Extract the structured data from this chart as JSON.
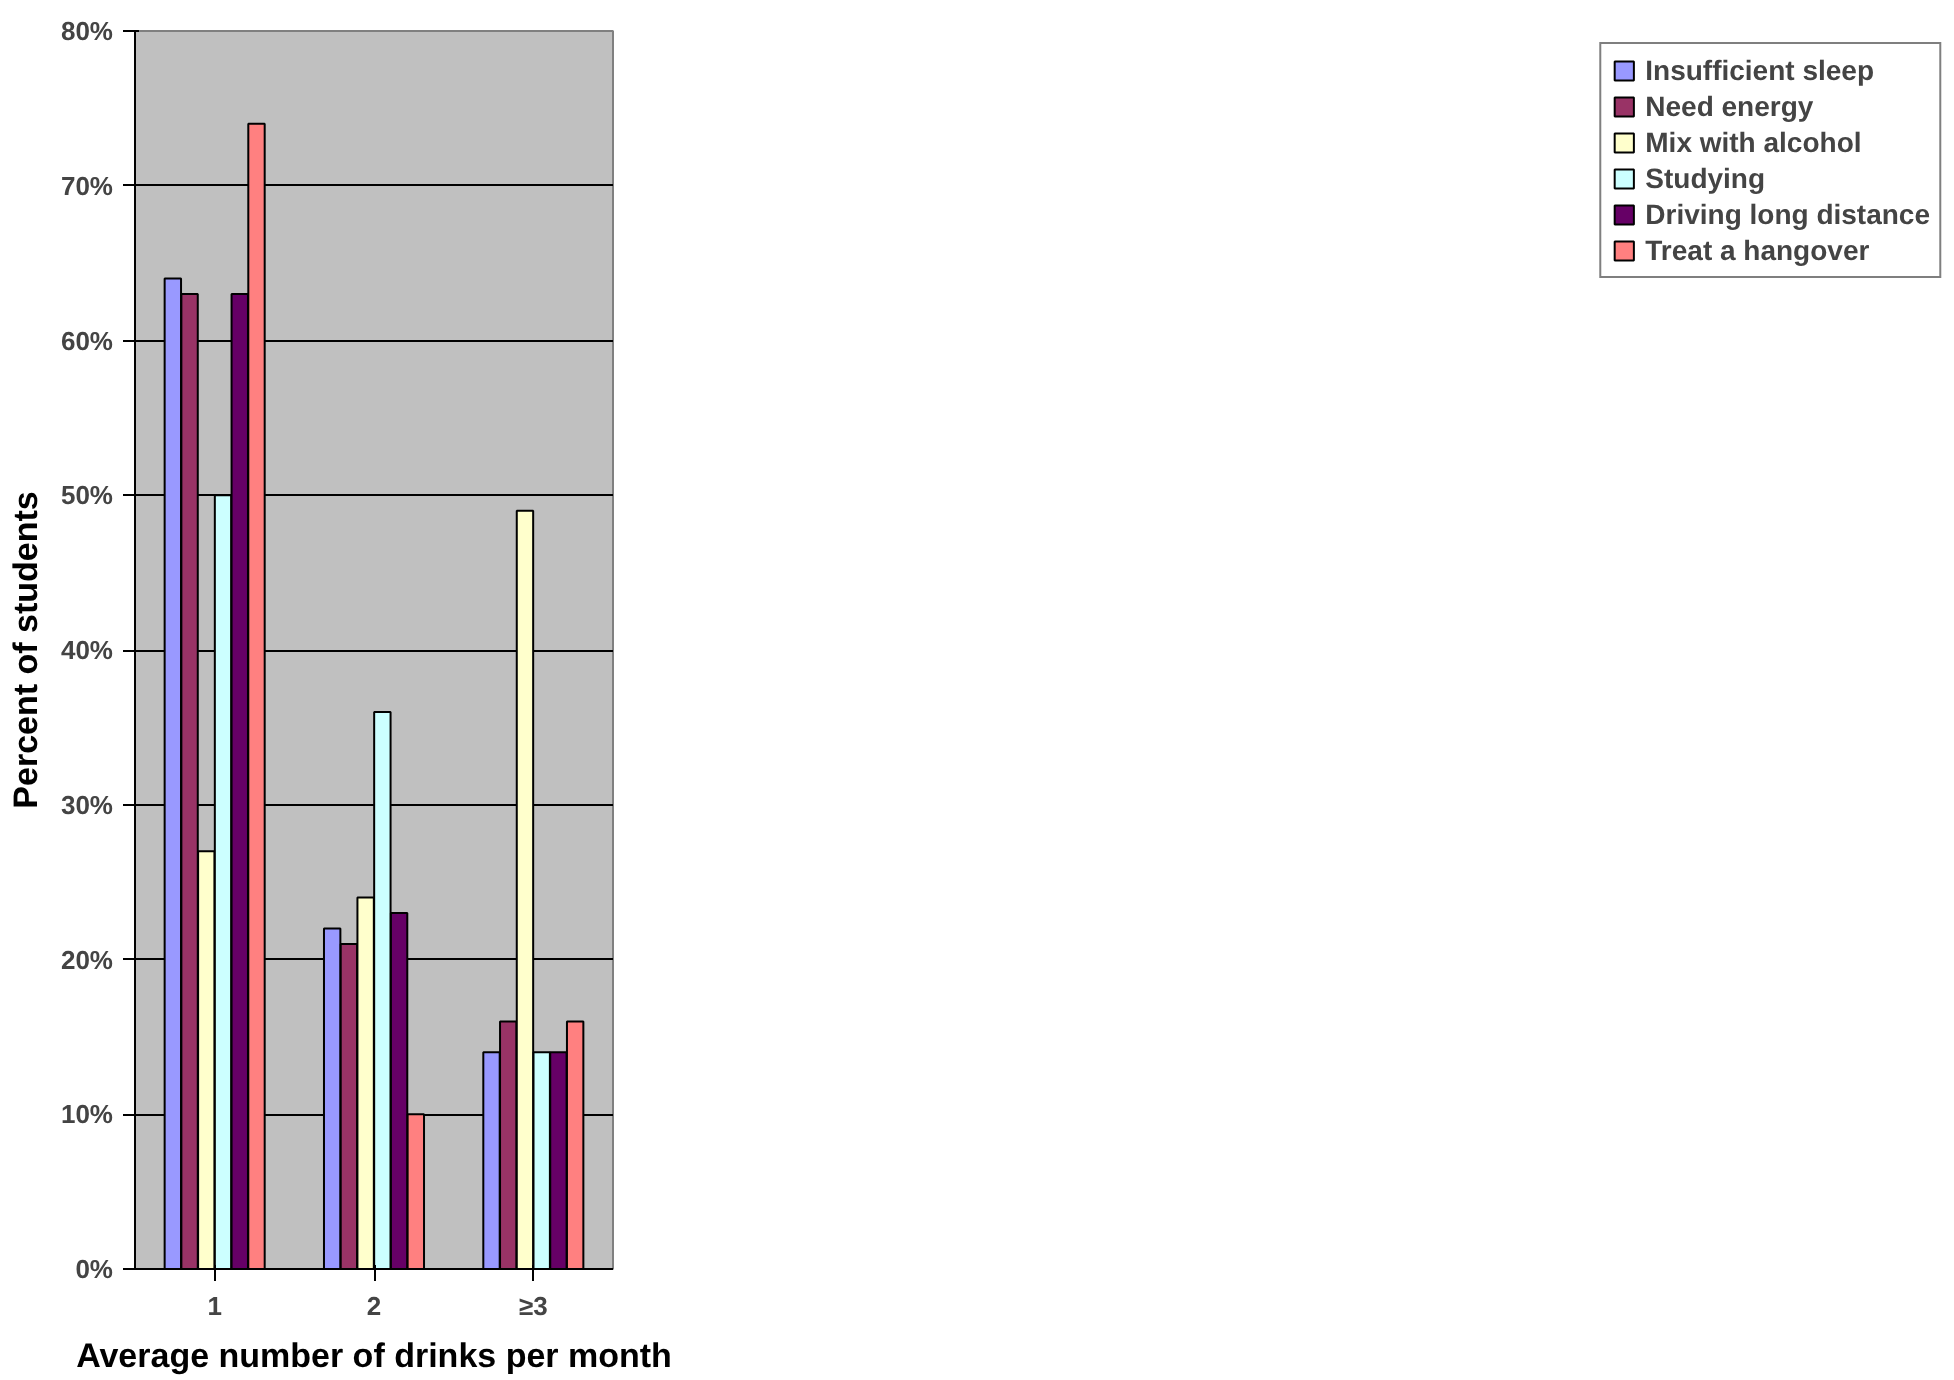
{
  "chart_data": {
    "type": "bar",
    "xlabel": "Average number of drinks per month",
    "ylabel": "Percent of students",
    "categories": [
      "1",
      "2",
      "≥3"
    ],
    "series": [
      {
        "name": "Insufficient sleep",
        "color": "#9999ff",
        "values": [
          64,
          22,
          14
        ]
      },
      {
        "name": "Need energy",
        "color": "#993366",
        "values": [
          63,
          21,
          16
        ]
      },
      {
        "name": "Mix with alcohol",
        "color": "#ffffcc",
        "values": [
          27,
          24,
          49
        ]
      },
      {
        "name": "Studying",
        "color": "#ccffff",
        "values": [
          50,
          36,
          14
        ]
      },
      {
        "name": "Driving long distance",
        "color": "#660066",
        "values": [
          63,
          23,
          14
        ]
      },
      {
        "name": "Treat a hangover",
        "color": "#ff8080",
        "values": [
          74,
          10,
          16
        ]
      }
    ],
    "ylim": [
      0,
      80
    ],
    "yticks": [
      {
        "value": 0,
        "label": "0%"
      },
      {
        "value": 10,
        "label": "10%"
      },
      {
        "value": 20,
        "label": "20%"
      },
      {
        "value": 30,
        "label": "30%"
      },
      {
        "value": 40,
        "label": "40%"
      },
      {
        "value": 50,
        "label": "50%"
      },
      {
        "value": 60,
        "label": "60%"
      },
      {
        "value": 70,
        "label": "70%"
      },
      {
        "value": 80,
        "label": "80%"
      }
    ],
    "grid": "y",
    "legend": "right"
  }
}
